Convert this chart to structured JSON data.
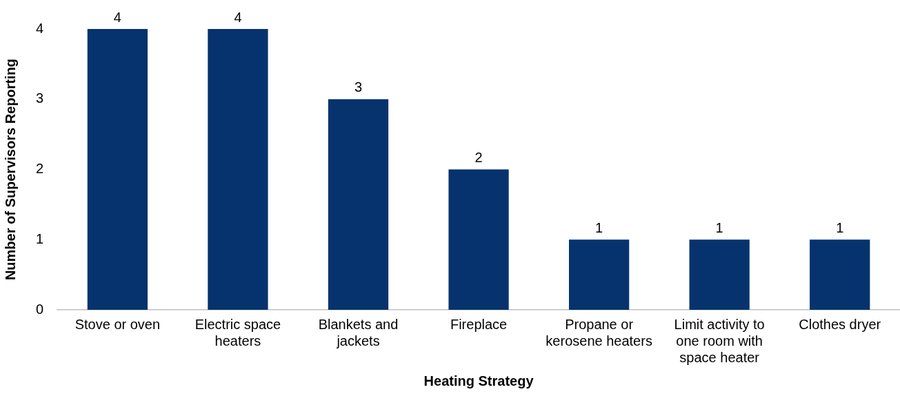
{
  "chart_data": {
    "type": "bar",
    "xlabel": "Heating Strategy",
    "ylabel": "Number of Supervisors Reporting",
    "categories": [
      "Stove or oven",
      "Electric space heaters",
      "Blankets and jackets",
      "Fireplace",
      "Propane or kerosene heaters",
      "Limit activity to one room with space heater",
      "Clothes dryer"
    ],
    "values": [
      4,
      4,
      3,
      2,
      1,
      1,
      1
    ],
    "color": "#06336e",
    "ylim": [
      0,
      4
    ],
    "yticks": [
      0,
      1,
      2,
      3,
      4
    ],
    "grid": false,
    "legend": false,
    "data_labels": true
  }
}
